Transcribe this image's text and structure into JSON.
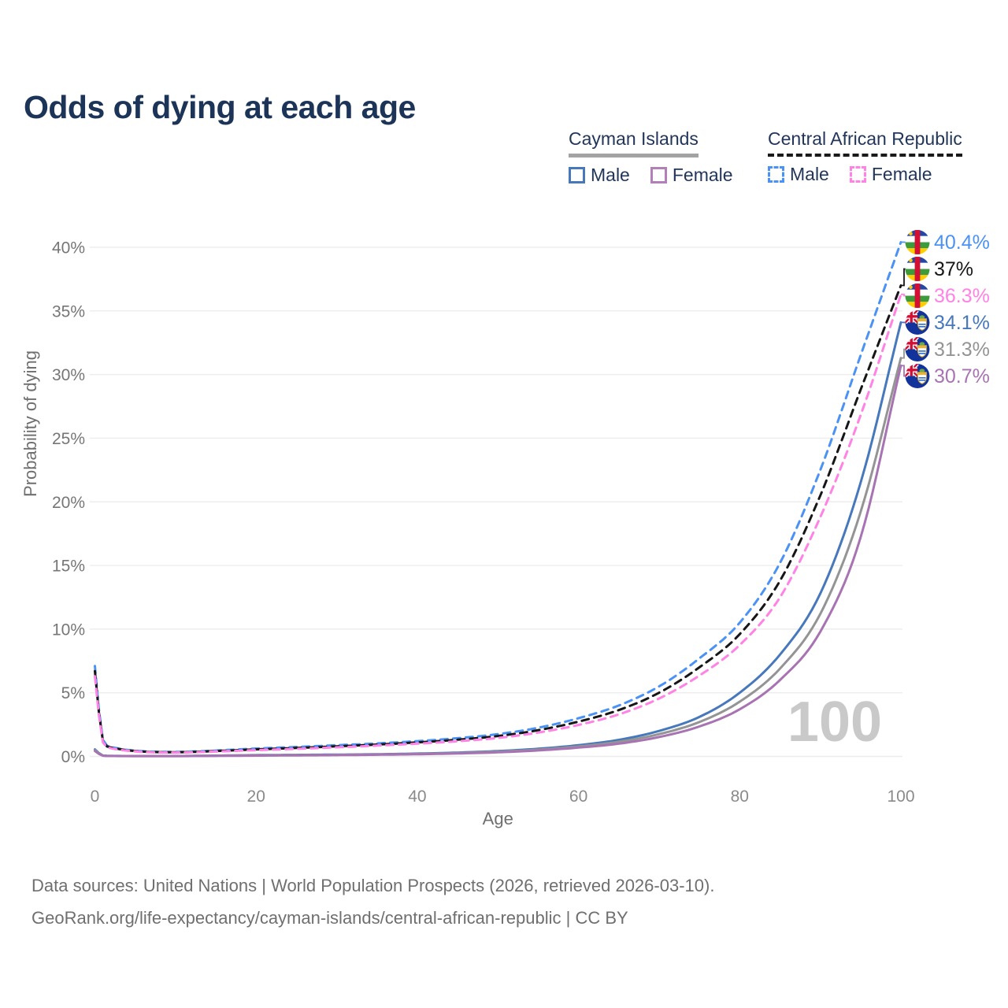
{
  "title": "Odds of dying at each age",
  "legend": {
    "groups": [
      {
        "country": "Cayman Islands",
        "line_style": "solid",
        "overall_color": "#a3a3a3",
        "items": [
          {
            "label": "Male",
            "color": "#4678bb",
            "dashed": false
          },
          {
            "label": "Female",
            "color": "#b27fb8",
            "dashed": false
          }
        ]
      },
      {
        "country": "Central African Republic",
        "line_style": "dashed",
        "overall_color": "#1a1a1a",
        "items": [
          {
            "label": "Male",
            "color": "#4b92f5",
            "dashed": true
          },
          {
            "label": "Female",
            "color": "#ff82e5",
            "dashed": true
          }
        ]
      }
    ]
  },
  "watermark": "100",
  "footer": {
    "line1": "Data sources: United Nations | World Population Prospects (2026, retrieved 2026-03-10).",
    "line2": "GeoRank.org/life-expectancy/cayman-islands/central-african-republic | CC BY"
  },
  "chart_data": {
    "type": "line",
    "title": "Odds of dying at each age",
    "xlabel": "Age",
    "ylabel": "Probability of dying",
    "xlim": [
      0,
      100
    ],
    "ylim": [
      0,
      40
    ],
    "x_ticks": [
      0,
      20,
      40,
      60,
      80,
      100
    ],
    "y_ticks": [
      0,
      5,
      10,
      15,
      20,
      25,
      30,
      35,
      40
    ],
    "y_tick_suffix": "%",
    "grid": true,
    "legend_position": "top-right",
    "ages": [
      0,
      1,
      2,
      5,
      10,
      15,
      20,
      25,
      30,
      35,
      40,
      45,
      50,
      55,
      60,
      65,
      70,
      75,
      80,
      85,
      90,
      95,
      100
    ],
    "series": [
      {
        "name": "Central African Republic Male",
        "flag": "car",
        "color": "#4b92f5",
        "dashed": true,
        "end_label": "40.4%",
        "end_value": 40.4,
        "values": [
          7.1,
          1.3,
          0.75,
          0.45,
          0.36,
          0.46,
          0.62,
          0.74,
          0.88,
          1.02,
          1.2,
          1.43,
          1.75,
          2.25,
          3.0,
          4.0,
          5.5,
          7.7,
          10.5,
          15.2,
          22.5,
          31.5,
          40.4
        ]
      },
      {
        "name": "Central African Republic Both sexes",
        "flag": "car",
        "color": "#161616",
        "dashed": true,
        "end_label": "37%",
        "end_value": 37.0,
        "values": [
          6.7,
          1.2,
          0.7,
          0.42,
          0.33,
          0.42,
          0.55,
          0.66,
          0.79,
          0.93,
          1.1,
          1.31,
          1.6,
          2.06,
          2.73,
          3.64,
          5.0,
          7.0,
          9.6,
          13.8,
          20.5,
          28.8,
          37.0
        ]
      },
      {
        "name": "Central African Republic Female",
        "flag": "car",
        "color": "#ff82e5",
        "dashed": true,
        "end_label": "36.3%",
        "end_value": 36.3,
        "values": [
          6.3,
          1.1,
          0.64,
          0.39,
          0.3,
          0.38,
          0.49,
          0.59,
          0.71,
          0.85,
          1.0,
          1.19,
          1.45,
          1.87,
          2.47,
          3.3,
          4.55,
          6.35,
          8.75,
          12.5,
          18.8,
          26.8,
          36.3
        ]
      },
      {
        "name": "Cayman Islands Male",
        "flag": "cayman",
        "color": "#4678bb",
        "dashed": false,
        "end_label": "34.1%",
        "end_value": 34.1,
        "values": [
          0.55,
          0.07,
          0.04,
          0.03,
          0.03,
          0.06,
          0.1,
          0.12,
          0.14,
          0.17,
          0.22,
          0.3,
          0.42,
          0.6,
          0.88,
          1.3,
          2.0,
          3.1,
          5.0,
          8.0,
          12.8,
          21.5,
          34.1
        ]
      },
      {
        "name": "Cayman Islands Both sexes",
        "flag": "cayman",
        "color": "#949494",
        "dashed": false,
        "end_label": "31.3%",
        "end_value": 31.3,
        "values": [
          0.48,
          0.06,
          0.035,
          0.027,
          0.027,
          0.05,
          0.08,
          0.1,
          0.12,
          0.15,
          0.19,
          0.26,
          0.37,
          0.53,
          0.78,
          1.15,
          1.75,
          2.7,
          4.3,
          6.9,
          11.2,
          19.2,
          31.3
        ]
      },
      {
        "name": "Cayman Islands Female",
        "flag": "cayman",
        "color": "#a873b2",
        "dashed": false,
        "end_label": "30.7%",
        "end_value": 30.7,
        "values": [
          0.42,
          0.05,
          0.03,
          0.024,
          0.024,
          0.04,
          0.06,
          0.08,
          0.1,
          0.13,
          0.17,
          0.23,
          0.32,
          0.47,
          0.69,
          1.0,
          1.52,
          2.35,
          3.7,
          6.0,
          9.8,
          17.2,
          30.7
        ]
      }
    ]
  }
}
